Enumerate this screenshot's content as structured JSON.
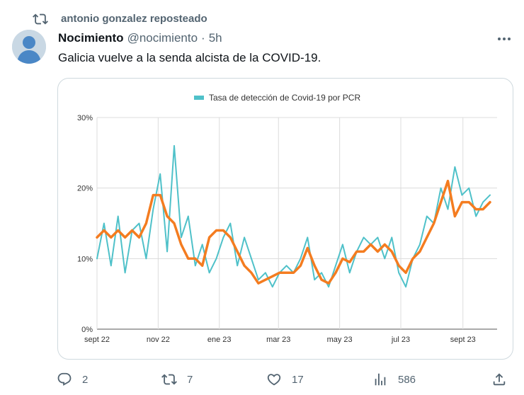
{
  "repost": {
    "icon": "repost-icon",
    "text": "antonio gonzalez reposteado"
  },
  "author": {
    "name": "Nocimiento",
    "handle": "@nocimiento",
    "separator": "·",
    "time": "5h",
    "avatar": "default-avatar-icon"
  },
  "tweet": {
    "text": "Galicia vuelve a la senda alcista de la COVID-19."
  },
  "chart_data": {
    "type": "line",
    "title": "",
    "legend": {
      "label": "Tasa de detección de Covid-19 por PCR",
      "position": "top",
      "color": "#4fc1c9"
    },
    "xlabel": "",
    "ylabel": "",
    "ylim": [
      0,
      30
    ],
    "yticks": [
      "0%",
      "10%",
      "20%",
      "30%"
    ],
    "xticks": [
      "sept 22",
      "nov 22",
      "ene 23",
      "mar 23",
      "may 23",
      "jul 23",
      "sept 23"
    ],
    "grid": true,
    "series": [
      {
        "name": "Tasa de detección de Covid-19 por PCR",
        "color": "#4fc1c9",
        "x": [
          "2022-09-01",
          "2022-09-08",
          "2022-09-15",
          "2022-09-22",
          "2022-09-29",
          "2022-10-06",
          "2022-10-13",
          "2022-10-20",
          "2022-10-27",
          "2022-11-03",
          "2022-11-10",
          "2022-11-17",
          "2022-11-24",
          "2022-12-01",
          "2022-12-08",
          "2022-12-15",
          "2022-12-22",
          "2022-12-29",
          "2023-01-05",
          "2023-01-12",
          "2023-01-19",
          "2023-01-26",
          "2023-02-02",
          "2023-02-09",
          "2023-02-16",
          "2023-02-23",
          "2023-03-02",
          "2023-03-09",
          "2023-03-16",
          "2023-03-23",
          "2023-03-30",
          "2023-04-06",
          "2023-04-13",
          "2023-04-20",
          "2023-04-27",
          "2023-05-04",
          "2023-05-11",
          "2023-05-18",
          "2023-05-25",
          "2023-06-01",
          "2023-06-08",
          "2023-06-15",
          "2023-06-22",
          "2023-06-29",
          "2023-07-06",
          "2023-07-13",
          "2023-07-20",
          "2023-07-27",
          "2023-08-03",
          "2023-08-10",
          "2023-08-17",
          "2023-08-24",
          "2023-08-31",
          "2023-09-07",
          "2023-09-14",
          "2023-09-21",
          "2023-09-28"
        ],
        "values": [
          10,
          15,
          9,
          16,
          8,
          14,
          15,
          10,
          17,
          22,
          11,
          26,
          13,
          16,
          9,
          12,
          8,
          10,
          13,
          15,
          9,
          13,
          10,
          7,
          8,
          6,
          8,
          9,
          8,
          10,
          13,
          7,
          8,
          6,
          9,
          12,
          8,
          11,
          13,
          12,
          13,
          10,
          13,
          8,
          6,
          10,
          12,
          16,
          15,
          20,
          17,
          23,
          19,
          20,
          16,
          18,
          19
        ]
      },
      {
        "name": "",
        "color": "#f47c20",
        "x": [
          "2022-09-01",
          "2022-09-08",
          "2022-09-15",
          "2022-09-22",
          "2022-09-29",
          "2022-10-06",
          "2022-10-13",
          "2022-10-20",
          "2022-10-27",
          "2022-11-03",
          "2022-11-10",
          "2022-11-17",
          "2022-11-24",
          "2022-12-01",
          "2022-12-08",
          "2022-12-15",
          "2022-12-22",
          "2022-12-29",
          "2023-01-05",
          "2023-01-12",
          "2023-01-19",
          "2023-01-26",
          "2023-02-02",
          "2023-02-09",
          "2023-02-16",
          "2023-02-23",
          "2023-03-02",
          "2023-03-09",
          "2023-03-16",
          "2023-03-23",
          "2023-03-30",
          "2023-04-06",
          "2023-04-13",
          "2023-04-20",
          "2023-04-27",
          "2023-05-04",
          "2023-05-11",
          "2023-05-18",
          "2023-05-25",
          "2023-06-01",
          "2023-06-08",
          "2023-06-15",
          "2023-06-22",
          "2023-06-29",
          "2023-07-06",
          "2023-07-13",
          "2023-07-20",
          "2023-07-27",
          "2023-08-03",
          "2023-08-10",
          "2023-08-17",
          "2023-08-24",
          "2023-08-31",
          "2023-09-07",
          "2023-09-14",
          "2023-09-21",
          "2023-09-28"
        ],
        "values": [
          13,
          14,
          13,
          14,
          13,
          14,
          13,
          15,
          19,
          19,
          16,
          15,
          12,
          10,
          10,
          9,
          13,
          14,
          14,
          13,
          11,
          9,
          8,
          6.5,
          7,
          7.5,
          8,
          8,
          8,
          9,
          11.5,
          9,
          7,
          6.5,
          8,
          10,
          9.5,
          11,
          11,
          12,
          11,
          12,
          11,
          9,
          8,
          10,
          11,
          13,
          15,
          18,
          21,
          16,
          18,
          18,
          17,
          17,
          18
        ]
      }
    ]
  },
  "actions": [
    {
      "name": "reply",
      "icon": "reply-icon",
      "count": "2"
    },
    {
      "name": "repost",
      "icon": "repost-icon",
      "count": "7"
    },
    {
      "name": "like",
      "icon": "heart-icon",
      "count": "17"
    },
    {
      "name": "views",
      "icon": "views-icon",
      "count": "586"
    },
    {
      "name": "share",
      "icon": "share-icon"
    }
  ],
  "more": {
    "icon": "more-icon"
  }
}
